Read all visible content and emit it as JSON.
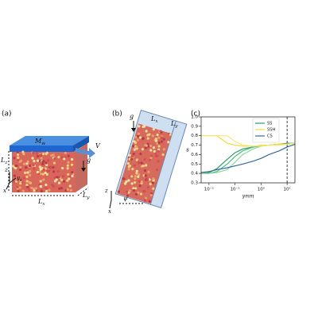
{
  "panel_a": {
    "label": "(a)",
    "plate": {
      "main": "M",
      "sub": "w"
    },
    "velocity": "V",
    "gravity": "g",
    "lz": {
      "main": "L",
      "sub": "z"
    },
    "lx": {
      "main": "L",
      "sub": "x"
    },
    "ly": {
      "main": "L",
      "sub": "y"
    },
    "axes": [
      "z",
      "y",
      "x"
    ]
  },
  "panel_b": {
    "label": "(b)",
    "gravity": "g",
    "lx": {
      "main": "L",
      "sub": "x"
    },
    "ly": {
      "main": "L",
      "sub": "y"
    },
    "axes": [
      "z",
      "x"
    ],
    "angle": "ψ"
  },
  "chart_data": {
    "type": "line",
    "label": "(c)",
    "xlabel": "γmm",
    "ylabel": "s",
    "log_x": true,
    "xlim": [
      0.005,
      20
    ],
    "ylim": [
      0.3,
      1.0
    ],
    "xticks": [
      {
        "value": 0.01,
        "label": "10⁻²"
      },
      {
        "value": 0.1,
        "label": "10⁻¹"
      },
      {
        "value": 1,
        "label": "10⁰"
      },
      {
        "value": 10,
        "label": "10¹"
      }
    ],
    "yticks": [
      0.3,
      0.4,
      0.5,
      0.6,
      0.7,
      0.8,
      0.9,
      {
        "value": 1.0,
        "label": "1.0"
      }
    ],
    "vline": 10,
    "x": [
      0.005,
      0.01,
      0.02,
      0.05,
      0.1,
      0.2,
      0.5,
      1,
      2,
      5,
      10,
      20
    ],
    "series": [
      {
        "name": "SS",
        "color": "#2e9c6a",
        "values": [
          0.4,
          0.41,
          0.45,
          0.55,
          0.62,
          0.66,
          0.68,
          0.7,
          0.7,
          0.71,
          0.72,
          0.72
        ]
      },
      {
        "color": "#4cbc7e",
        "values": [
          0.4,
          0.4,
          0.42,
          0.5,
          0.58,
          0.64,
          0.68,
          0.69,
          0.7,
          0.71,
          0.71,
          0.72
        ]
      },
      {
        "color": "#8fd6a0",
        "values": [
          0.4,
          0.4,
          0.41,
          0.44,
          0.52,
          0.6,
          0.66,
          0.69,
          0.7,
          0.7,
          0.71,
          0.72
        ]
      },
      {
        "name": "SSH",
        "color": "#f2dc3c",
        "values": [
          0.8,
          0.8,
          0.8,
          0.72,
          0.7,
          0.69,
          0.69,
          0.7,
          0.7,
          0.71,
          0.71,
          0.72
        ]
      },
      {
        "color": "#f7e87a",
        "values": [
          0.8,
          0.8,
          0.8,
          0.8,
          0.74,
          0.7,
          0.69,
          0.69,
          0.7,
          0.7,
          0.71,
          0.72
        ]
      },
      {
        "name": "CS",
        "color": "#356b9c",
        "values": [
          0.41,
          0.42,
          0.44,
          0.46,
          0.48,
          0.5,
          0.53,
          0.56,
          0.6,
          0.64,
          0.68,
          0.71
        ]
      }
    ]
  }
}
